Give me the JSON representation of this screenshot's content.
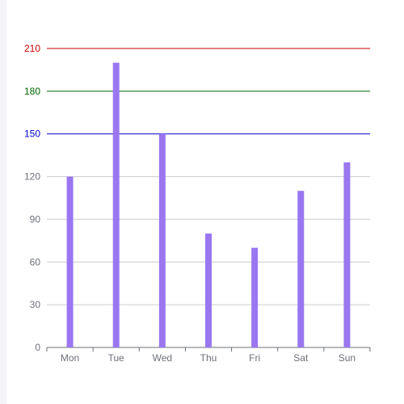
{
  "chart_data": {
    "type": "bar",
    "categories": [
      "Mon",
      "Tue",
      "Wed",
      "Thu",
      "Fri",
      "Sat",
      "Sun"
    ],
    "values": [
      120,
      200,
      150,
      80,
      70,
      110,
      130
    ],
    "ylim": [
      0,
      210
    ],
    "y_ticks": [
      0,
      30,
      60,
      90,
      120,
      150,
      180,
      210
    ],
    "grid": true,
    "bar_color": "#9a77f0",
    "reference_lines": [
      {
        "value": 150,
        "color": "#0000cc"
      },
      {
        "value": 180,
        "color": "#006400"
      },
      {
        "value": 210,
        "color": "#cc0000"
      }
    ],
    "axis_label_color": "#6e7079",
    "grid_color": "#cccccc"
  }
}
